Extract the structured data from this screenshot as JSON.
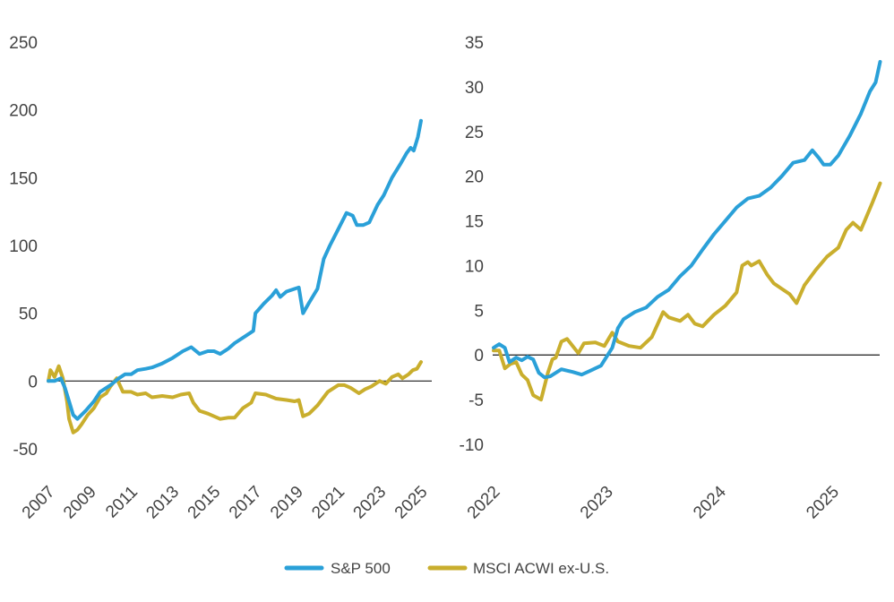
{
  "colors": {
    "sp500": "#2aa0d8",
    "acwi": "#c9ae2d",
    "axis": "#1a1a1a",
    "text": "#444444"
  },
  "legend": {
    "items": [
      {
        "key": "sp500",
        "label": "S&P 500"
      },
      {
        "key": "acwi",
        "label": "MSCI ACWI ex-U.S."
      }
    ]
  },
  "chart_data": [
    {
      "type": "line",
      "title": "",
      "xlabel": "",
      "ylabel": "",
      "xlim": [
        2007,
        2025
      ],
      "ylim": [
        -50,
        250
      ],
      "x_ticks": [
        2007,
        2009,
        2011,
        2013,
        2015,
        2017,
        2019,
        2021,
        2023,
        2025
      ],
      "x_tick_labels": [
        "2007",
        "2009",
        "2011",
        "2013",
        "2015",
        "2017",
        "2019",
        "2021",
        "2023",
        "2025"
      ],
      "y_ticks": [
        250,
        200,
        150,
        100,
        50,
        0,
        -50
      ],
      "y_tick_labels": [
        "250",
        "200",
        "150",
        "100",
        "50",
        "0",
        "-50"
      ],
      "zero_line": true,
      "grid": false,
      "series": [
        {
          "key": "sp500",
          "name": "S&P 500",
          "points": [
            [
              2007.0,
              0
            ],
            [
              2007.3,
              0
            ],
            [
              2007.6,
              2
            ],
            [
              2007.8,
              -5
            ],
            [
              2008.0,
              -15
            ],
            [
              2008.2,
              -25
            ],
            [
              2008.4,
              -28
            ],
            [
              2008.8,
              -22
            ],
            [
              2009.2,
              -15
            ],
            [
              2009.5,
              -8
            ],
            [
              2010.0,
              -3
            ],
            [
              2010.4,
              2
            ],
            [
              2010.7,
              5
            ],
            [
              2011.0,
              5
            ],
            [
              2011.3,
              8
            ],
            [
              2011.7,
              9
            ],
            [
              2012.0,
              10
            ],
            [
              2012.5,
              13
            ],
            [
              2013.0,
              17
            ],
            [
              2013.5,
              22
            ],
            [
              2013.9,
              25
            ],
            [
              2014.3,
              20
            ],
            [
              2014.7,
              22
            ],
            [
              2015.0,
              22
            ],
            [
              2015.3,
              20
            ],
            [
              2015.7,
              24
            ],
            [
              2016.0,
              28
            ],
            [
              2016.5,
              33
            ],
            [
              2016.9,
              37
            ],
            [
              2017.0,
              50
            ],
            [
              2017.4,
              57
            ],
            [
              2017.8,
              63
            ],
            [
              2018.0,
              67
            ],
            [
              2018.2,
              62
            ],
            [
              2018.5,
              66
            ],
            [
              2018.9,
              68
            ],
            [
              2019.1,
              69
            ],
            [
              2019.3,
              50
            ],
            [
              2019.6,
              58
            ],
            [
              2020.0,
              68
            ],
            [
              2020.3,
              90
            ],
            [
              2020.6,
              100
            ],
            [
              2021.0,
              112
            ],
            [
              2021.4,
              124
            ],
            [
              2021.7,
              122
            ],
            [
              2021.9,
              115
            ],
            [
              2022.2,
              115
            ],
            [
              2022.5,
              117
            ],
            [
              2022.9,
              130
            ],
            [
              2023.2,
              137
            ],
            [
              2023.6,
              150
            ],
            [
              2024.0,
              160
            ],
            [
              2024.3,
              168
            ],
            [
              2024.5,
              172
            ],
            [
              2024.65,
              170
            ],
            [
              2024.85,
              180
            ],
            [
              2025.0,
              192
            ]
          ]
        },
        {
          "key": "acwi",
          "name": "MSCI ACWI ex-U.S.",
          "points": [
            [
              2007.0,
              0
            ],
            [
              2007.1,
              8
            ],
            [
              2007.3,
              3
            ],
            [
              2007.5,
              11
            ],
            [
              2007.7,
              2
            ],
            [
              2007.9,
              -15
            ],
            [
              2008.0,
              -28
            ],
            [
              2008.2,
              -38
            ],
            [
              2008.4,
              -36
            ],
            [
              2008.6,
              -32
            ],
            [
              2008.9,
              -25
            ],
            [
              2009.2,
              -20
            ],
            [
              2009.5,
              -12
            ],
            [
              2009.8,
              -9
            ],
            [
              2010.0,
              -4
            ],
            [
              2010.3,
              2
            ],
            [
              2010.6,
              -8
            ],
            [
              2011.0,
              -8
            ],
            [
              2011.3,
              -10
            ],
            [
              2011.7,
              -9
            ],
            [
              2012.0,
              -12
            ],
            [
              2012.5,
              -11
            ],
            [
              2013.0,
              -12
            ],
            [
              2013.4,
              -10
            ],
            [
              2013.8,
              -9
            ],
            [
              2014.0,
              -16
            ],
            [
              2014.3,
              -22
            ],
            [
              2014.7,
              -24
            ],
            [
              2015.0,
              -26
            ],
            [
              2015.3,
              -28
            ],
            [
              2015.7,
              -27
            ],
            [
              2016.0,
              -27
            ],
            [
              2016.4,
              -20
            ],
            [
              2016.8,
              -16
            ],
            [
              2017.0,
              -9
            ],
            [
              2017.5,
              -10
            ],
            [
              2018.0,
              -13
            ],
            [
              2018.5,
              -14
            ],
            [
              2018.9,
              -15
            ],
            [
              2019.1,
              -14
            ],
            [
              2019.3,
              -26
            ],
            [
              2019.6,
              -24
            ],
            [
              2020.0,
              -18
            ],
            [
              2020.5,
              -8
            ],
            [
              2020.8,
              -5
            ],
            [
              2021.0,
              -3
            ],
            [
              2021.3,
              -3
            ],
            [
              2021.6,
              -5
            ],
            [
              2022.0,
              -9
            ],
            [
              2022.3,
              -6
            ],
            [
              2022.6,
              -4
            ],
            [
              2023.0,
              0
            ],
            [
              2023.3,
              -2
            ],
            [
              2023.6,
              3
            ],
            [
              2023.9,
              5
            ],
            [
              2024.1,
              2
            ],
            [
              2024.4,
              5
            ],
            [
              2024.6,
              8
            ],
            [
              2024.8,
              9
            ],
            [
              2025.0,
              14
            ]
          ]
        }
      ]
    },
    {
      "type": "line",
      "title": "",
      "xlabel": "",
      "ylabel": "",
      "xlim": [
        2022,
        2025.4
      ],
      "ylim": [
        -10,
        35
      ],
      "x_ticks": [
        2022,
        2023,
        2024,
        2025
      ],
      "x_tick_labels": [
        "2022",
        "2023",
        "2024",
        "2025"
      ],
      "y_ticks": [
        35,
        30,
        25,
        20,
        15,
        10,
        5,
        0,
        -5,
        -10
      ],
      "y_tick_labels": [
        "35",
        "30",
        "25",
        "20",
        "15",
        "10",
        "5",
        "0",
        "-5",
        "-10"
      ],
      "zero_line": true,
      "grid": false,
      "series": [
        {
          "key": "sp500",
          "name": "S&P 500",
          "points": [
            [
              2022.0,
              0.8
            ],
            [
              2022.05,
              1.2
            ],
            [
              2022.1,
              0.8
            ],
            [
              2022.14,
              -0.8
            ],
            [
              2022.2,
              -0.3
            ],
            [
              2022.25,
              -0.6
            ],
            [
              2022.3,
              -0.2
            ],
            [
              2022.35,
              -0.5
            ],
            [
              2022.4,
              -2.0
            ],
            [
              2022.45,
              -2.5
            ],
            [
              2022.5,
              -2.4
            ],
            [
              2022.55,
              -2.0
            ],
            [
              2022.6,
              -1.6
            ],
            [
              2022.7,
              -1.9
            ],
            [
              2022.78,
              -2.2
            ],
            [
              2022.85,
              -1.8
            ],
            [
              2022.95,
              -1.2
            ],
            [
              2023.0,
              -0.2
            ],
            [
              2023.05,
              0.8
            ],
            [
              2023.1,
              3.0
            ],
            [
              2023.15,
              4.0
            ],
            [
              2023.25,
              4.8
            ],
            [
              2023.35,
              5.3
            ],
            [
              2023.45,
              6.5
            ],
            [
              2023.55,
              7.3
            ],
            [
              2023.65,
              8.8
            ],
            [
              2023.75,
              10.0
            ],
            [
              2023.85,
              11.8
            ],
            [
              2023.95,
              13.5
            ],
            [
              2024.05,
              15.0
            ],
            [
              2024.15,
              16.5
            ],
            [
              2024.25,
              17.5
            ],
            [
              2024.35,
              17.8
            ],
            [
              2024.45,
              18.7
            ],
            [
              2024.55,
              20.0
            ],
            [
              2024.65,
              21.5
            ],
            [
              2024.75,
              21.8
            ],
            [
              2024.82,
              22.9
            ],
            [
              2024.88,
              22.0
            ],
            [
              2024.92,
              21.3
            ],
            [
              2024.98,
              21.3
            ],
            [
              2025.05,
              22.3
            ],
            [
              2025.15,
              24.5
            ],
            [
              2025.25,
              27.0
            ],
            [
              2025.33,
              29.5
            ],
            [
              2025.38,
              30.5
            ],
            [
              2025.42,
              32.8
            ]
          ]
        },
        {
          "key": "acwi",
          "name": "MSCI ACWI ex-U.S.",
          "points": [
            [
              2022.0,
              0.5
            ],
            [
              2022.05,
              0.5
            ],
            [
              2022.1,
              -1.5
            ],
            [
              2022.15,
              -1.0
            ],
            [
              2022.2,
              -0.8
            ],
            [
              2022.25,
              -2.2
            ],
            [
              2022.3,
              -2.8
            ],
            [
              2022.35,
              -4.5
            ],
            [
              2022.42,
              -5.0
            ],
            [
              2022.48,
              -2.0
            ],
            [
              2022.52,
              -0.5
            ],
            [
              2022.55,
              -0.3
            ],
            [
              2022.6,
              1.5
            ],
            [
              2022.65,
              1.8
            ],
            [
              2022.7,
              1.0
            ],
            [
              2022.75,
              0.2
            ],
            [
              2022.8,
              1.3
            ],
            [
              2022.9,
              1.4
            ],
            [
              2022.98,
              1.0
            ],
            [
              2023.05,
              2.5
            ],
            [
              2023.1,
              1.5
            ],
            [
              2023.2,
              1.0
            ],
            [
              2023.3,
              0.8
            ],
            [
              2023.4,
              2.0
            ],
            [
              2023.5,
              4.8
            ],
            [
              2023.55,
              4.2
            ],
            [
              2023.65,
              3.8
            ],
            [
              2023.72,
              4.5
            ],
            [
              2023.78,
              3.5
            ],
            [
              2023.85,
              3.2
            ],
            [
              2023.95,
              4.5
            ],
            [
              2024.05,
              5.5
            ],
            [
              2024.15,
              7.0
            ],
            [
              2024.2,
              10.0
            ],
            [
              2024.25,
              10.4
            ],
            [
              2024.28,
              10.0
            ],
            [
              2024.35,
              10.5
            ],
            [
              2024.42,
              9.0
            ],
            [
              2024.48,
              8.0
            ],
            [
              2024.55,
              7.4
            ],
            [
              2024.62,
              6.8
            ],
            [
              2024.68,
              5.8
            ],
            [
              2024.75,
              7.8
            ],
            [
              2024.85,
              9.5
            ],
            [
              2024.95,
              11.0
            ],
            [
              2025.05,
              12.0
            ],
            [
              2025.12,
              14.0
            ],
            [
              2025.18,
              14.8
            ],
            [
              2025.25,
              14.0
            ],
            [
              2025.3,
              15.5
            ],
            [
              2025.35,
              17.0
            ],
            [
              2025.42,
              19.2
            ]
          ]
        }
      ]
    }
  ]
}
